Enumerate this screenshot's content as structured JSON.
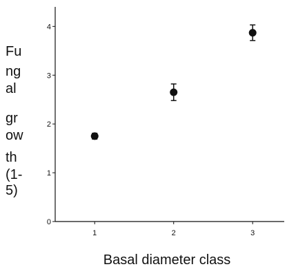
{
  "chart_data": {
    "type": "scatter",
    "title": "",
    "xlabel": "Basal diameter class",
    "ylabel_lines": [
      "Fu",
      "ng",
      "al",
      "gr",
      "ow",
      "th",
      "(1-",
      "5)"
    ],
    "x_ticks": [
      "1",
      "2",
      "3"
    ],
    "y_ticks": [
      "0",
      "1",
      "2",
      "3",
      "4"
    ],
    "xlim": [
      0.5,
      3.4
    ],
    "ylim": [
      0,
      4.4
    ],
    "grid": false,
    "series": [
      {
        "x": [
          1,
          2,
          3
        ],
        "y": [
          1.75,
          2.65,
          3.87
        ],
        "err": [
          0.06,
          0.17,
          0.16
        ]
      }
    ]
  }
}
